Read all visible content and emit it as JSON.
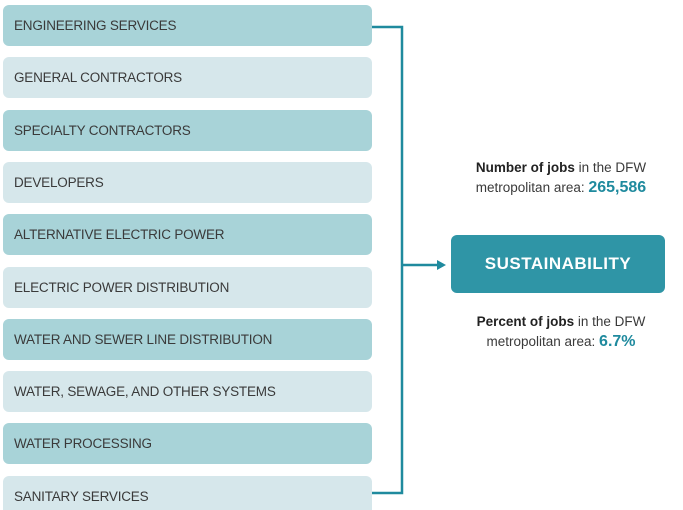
{
  "items": [
    "ENGINEERING SERVICES",
    "GENERAL CONTRACTORS",
    "SPECIALTY CONTRACTORS",
    "DEVELOPERS",
    "ALTERNATIVE ELECTRIC POWER",
    "ELECTRIC POWER DISTRIBUTION",
    "WATER AND SEWER LINE DISTRIBUTION",
    "WATER, SEWAGE, AND OTHER SYSTEMS",
    "WATER PROCESSING",
    "SANITARY SERVICES"
  ],
  "hub": "SUSTAINABILITY",
  "stats": [
    {
      "bold": "Number of jobs",
      "text": "in the DFW metropolitan area:",
      "value": "265,586"
    },
    {
      "bold": "Percent of jobs",
      "text": "in the DFW metropolitan area:",
      "value": "6.7%"
    }
  ]
}
